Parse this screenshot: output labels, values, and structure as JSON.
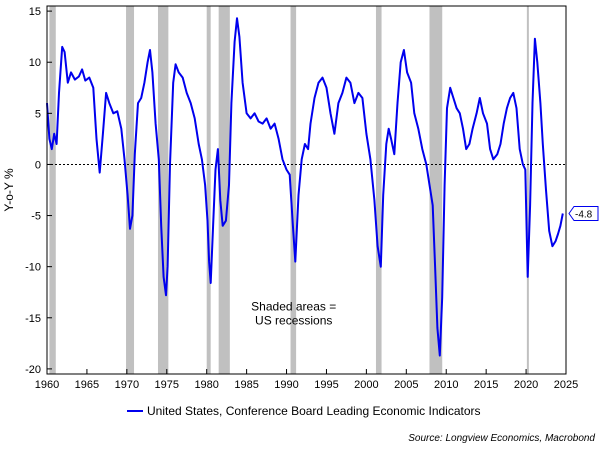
{
  "chart_data": {
    "type": "line",
    "ylabel": "Y-o-Y %",
    "xlim": [
      1960,
      2025
    ],
    "ylim": [
      -20.5,
      15.5
    ],
    "x_ticks": [
      1960,
      1965,
      1970,
      1975,
      1980,
      1985,
      1990,
      1995,
      2000,
      2005,
      2010,
      2015,
      2020,
      2025
    ],
    "y_ticks": [
      15,
      10,
      5,
      0,
      -5,
      -10,
      -15,
      -20
    ],
    "zero_line": {
      "value": 0,
      "style": "dotted"
    },
    "annotation": {
      "line1": "Shaded areas =",
      "line2": "US recessions",
      "x": 1990.9,
      "y": -14.5
    },
    "last_value_label": "-4.8",
    "last_value": -4.8,
    "recessions": [
      [
        1960.3,
        1961.1
      ],
      [
        1969.9,
        1970.9
      ],
      [
        1973.9,
        1975.2
      ],
      [
        1980.0,
        1980.5
      ],
      [
        1981.5,
        1982.9
      ],
      [
        1990.5,
        1991.2
      ],
      [
        2001.2,
        2001.9
      ],
      [
        2007.9,
        2009.5
      ],
      [
        2020.1,
        2020.3
      ]
    ],
    "series": [
      {
        "name": "United States, Conference Board Leading Economic Indicators",
        "color": "#0000ee",
        "points": [
          [
            1960.0,
            6.0
          ],
          [
            1960.3,
            2.5
          ],
          [
            1960.6,
            1.5
          ],
          [
            1960.9,
            3.0
          ],
          [
            1961.2,
            2.0
          ],
          [
            1961.5,
            7.0
          ],
          [
            1961.9,
            11.5
          ],
          [
            1962.2,
            11.0
          ],
          [
            1962.6,
            8.0
          ],
          [
            1963.0,
            9.0
          ],
          [
            1963.5,
            8.3
          ],
          [
            1964.0,
            8.6
          ],
          [
            1964.4,
            9.3
          ],
          [
            1964.8,
            8.2
          ],
          [
            1965.3,
            8.5
          ],
          [
            1965.8,
            7.5
          ],
          [
            1966.2,
            2.5
          ],
          [
            1966.6,
            -0.8
          ],
          [
            1967.0,
            3.0
          ],
          [
            1967.4,
            7.0
          ],
          [
            1967.8,
            6.0
          ],
          [
            1968.3,
            5.0
          ],
          [
            1968.8,
            5.2
          ],
          [
            1969.3,
            3.5
          ],
          [
            1969.7,
            0.5
          ],
          [
            1970.1,
            -3.0
          ],
          [
            1970.4,
            -6.3
          ],
          [
            1970.7,
            -5.0
          ],
          [
            1971.0,
            1.0
          ],
          [
            1971.4,
            6.0
          ],
          [
            1971.8,
            6.5
          ],
          [
            1972.2,
            8.0
          ],
          [
            1972.6,
            10.0
          ],
          [
            1972.9,
            11.2
          ],
          [
            1973.2,
            9.0
          ],
          [
            1973.6,
            4.0
          ],
          [
            1974.0,
            0.5
          ],
          [
            1974.3,
            -6.0
          ],
          [
            1974.6,
            -11.0
          ],
          [
            1974.9,
            -12.8
          ],
          [
            1975.1,
            -10.0
          ],
          [
            1975.4,
            0.0
          ],
          [
            1975.8,
            8.0
          ],
          [
            1976.1,
            9.8
          ],
          [
            1976.5,
            9.0
          ],
          [
            1977.0,
            8.5
          ],
          [
            1977.5,
            7.0
          ],
          [
            1978.0,
            6.0
          ],
          [
            1978.5,
            4.5
          ],
          [
            1979.0,
            2.0
          ],
          [
            1979.4,
            0.5
          ],
          [
            1979.8,
            -2.0
          ],
          [
            1980.1,
            -5.5
          ],
          [
            1980.3,
            -9.5
          ],
          [
            1980.5,
            -11.6
          ],
          [
            1980.8,
            -6.0
          ],
          [
            1981.1,
            -0.5
          ],
          [
            1981.4,
            1.5
          ],
          [
            1981.7,
            -3.5
          ],
          [
            1982.0,
            -6.0
          ],
          [
            1982.4,
            -5.5
          ],
          [
            1982.8,
            -2.0
          ],
          [
            1983.1,
            6.0
          ],
          [
            1983.5,
            12.0
          ],
          [
            1983.8,
            14.3
          ],
          [
            1984.1,
            12.5
          ],
          [
            1984.5,
            8.0
          ],
          [
            1985.0,
            5.0
          ],
          [
            1985.5,
            4.5
          ],
          [
            1986.0,
            5.0
          ],
          [
            1986.5,
            4.2
          ],
          [
            1987.0,
            4.0
          ],
          [
            1987.5,
            4.5
          ],
          [
            1988.0,
            3.5
          ],
          [
            1988.5,
            4.0
          ],
          [
            1989.0,
            2.5
          ],
          [
            1989.5,
            0.5
          ],
          [
            1990.0,
            -0.5
          ],
          [
            1990.4,
            -1.0
          ],
          [
            1990.8,
            -6.0
          ],
          [
            1991.1,
            -9.5
          ],
          [
            1991.5,
            -3.0
          ],
          [
            1991.9,
            0.5
          ],
          [
            1992.3,
            2.0
          ],
          [
            1992.7,
            1.5
          ],
          [
            1993.0,
            4.0
          ],
          [
            1993.5,
            6.5
          ],
          [
            1994.0,
            8.0
          ],
          [
            1994.5,
            8.5
          ],
          [
            1995.0,
            7.5
          ],
          [
            1995.5,
            5.0
          ],
          [
            1996.0,
            3.0
          ],
          [
            1996.5,
            6.0
          ],
          [
            1997.0,
            7.0
          ],
          [
            1997.5,
            8.5
          ],
          [
            1998.0,
            8.0
          ],
          [
            1998.5,
            6.0
          ],
          [
            1999.0,
            7.0
          ],
          [
            1999.5,
            6.5
          ],
          [
            2000.0,
            3.0
          ],
          [
            2000.5,
            0.5
          ],
          [
            2001.0,
            -3.5
          ],
          [
            2001.4,
            -8.0
          ],
          [
            2001.8,
            -10.0
          ],
          [
            2002.1,
            -3.0
          ],
          [
            2002.5,
            2.0
          ],
          [
            2002.8,
            3.5
          ],
          [
            2003.1,
            2.5
          ],
          [
            2003.5,
            1.0
          ],
          [
            2003.9,
            6.0
          ],
          [
            2004.3,
            10.0
          ],
          [
            2004.7,
            11.2
          ],
          [
            2005.1,
            9.0
          ],
          [
            2005.6,
            8.0
          ],
          [
            2006.0,
            5.0
          ],
          [
            2006.5,
            3.5
          ],
          [
            2007.0,
            1.5
          ],
          [
            2007.5,
            0.0
          ],
          [
            2007.9,
            -2.0
          ],
          [
            2008.3,
            -4.0
          ],
          [
            2008.6,
            -10.0
          ],
          [
            2008.9,
            -16.0
          ],
          [
            2009.2,
            -18.7
          ],
          [
            2009.5,
            -13.0
          ],
          [
            2009.8,
            -2.0
          ],
          [
            2010.1,
            5.5
          ],
          [
            2010.5,
            7.5
          ],
          [
            2010.9,
            6.5
          ],
          [
            2011.3,
            5.5
          ],
          [
            2011.7,
            5.0
          ],
          [
            2012.1,
            3.5
          ],
          [
            2012.5,
            1.5
          ],
          [
            2012.9,
            2.0
          ],
          [
            2013.3,
            3.5
          ],
          [
            2013.8,
            5.0
          ],
          [
            2014.2,
            6.5
          ],
          [
            2014.6,
            5.0
          ],
          [
            2015.1,
            4.0
          ],
          [
            2015.5,
            1.5
          ],
          [
            2015.9,
            0.5
          ],
          [
            2016.4,
            1.0
          ],
          [
            2016.8,
            2.0
          ],
          [
            2017.2,
            4.0
          ],
          [
            2017.6,
            5.5
          ],
          [
            2018.0,
            6.5
          ],
          [
            2018.4,
            7.0
          ],
          [
            2018.8,
            5.5
          ],
          [
            2019.2,
            1.5
          ],
          [
            2019.6,
            0.0
          ],
          [
            2019.9,
            -0.5
          ],
          [
            2020.2,
            -11.0
          ],
          [
            2020.5,
            -4.0
          ],
          [
            2020.8,
            6.0
          ],
          [
            2021.1,
            12.3
          ],
          [
            2021.4,
            10.0
          ],
          [
            2021.8,
            6.0
          ],
          [
            2022.1,
            2.0
          ],
          [
            2022.5,
            -2.5
          ],
          [
            2022.9,
            -6.5
          ],
          [
            2023.3,
            -8.0
          ],
          [
            2023.7,
            -7.5
          ],
          [
            2024.0,
            -6.8
          ],
          [
            2024.3,
            -6.0
          ],
          [
            2024.6,
            -4.8
          ]
        ]
      }
    ]
  },
  "legend": {
    "label": "United States, Conference Board Leading Economic Indicators"
  },
  "source": "Source: Longview Economics, Macrobond"
}
